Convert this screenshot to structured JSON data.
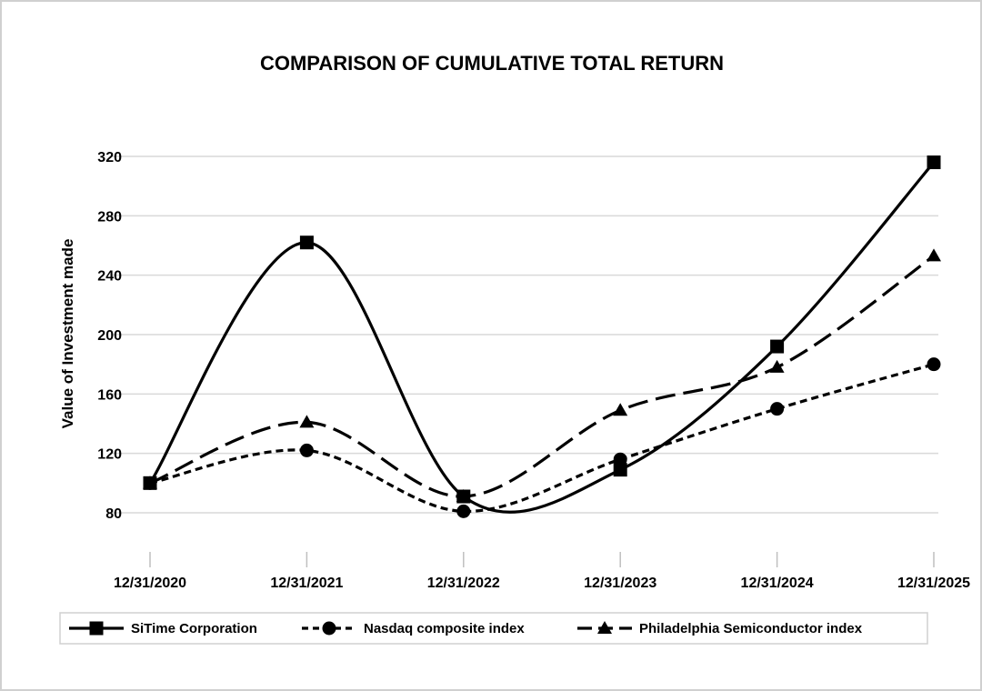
{
  "chart_data": {
    "type": "line",
    "title": "COMPARISON OF CUMULATIVE TOTAL RETURN",
    "xlabel": "",
    "ylabel": "Value of Investment made",
    "categories": [
      "12/31/2020",
      "12/31/2021",
      "12/31/2022",
      "12/31/2023",
      "12/31/2024",
      "12/31/2025"
    ],
    "y_ticks": [
      80,
      120,
      160,
      200,
      240,
      280,
      320
    ],
    "ylim": [
      60,
      340
    ],
    "grid": true,
    "legend_position": "bottom",
    "series": [
      {
        "name": "SiTime Corporation",
        "values": [
          100,
          262,
          91,
          109,
          192,
          316
        ],
        "marker": "square",
        "dash": "solid",
        "color": "#000000"
      },
      {
        "name": "Nasdaq composite index",
        "values": [
          100,
          122,
          81,
          116,
          150,
          180
        ],
        "marker": "circle",
        "dash": "dotted",
        "color": "#000000"
      },
      {
        "name": "Philadelphia Semiconductor index",
        "values": [
          100,
          141,
          91,
          149,
          178,
          253
        ],
        "marker": "triangle",
        "dash": "dashed",
        "color": "#000000"
      }
    ]
  }
}
